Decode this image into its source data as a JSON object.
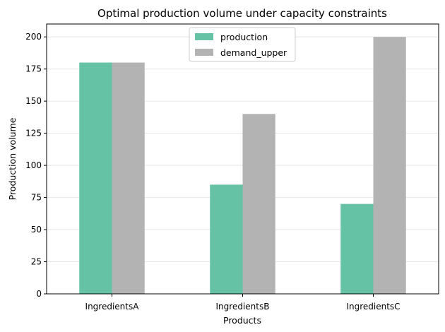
{
  "chart_data": {
    "type": "bar",
    "title": "Optimal production volume under capacity constraints",
    "xlabel": "Products",
    "ylabel": "Production volume",
    "categories": [
      "IngredientsA",
      "IngredientsB",
      "IngredientsC"
    ],
    "series": [
      {
        "name": "production",
        "values": [
          180,
          85,
          70
        ],
        "color": "#66c2a5"
      },
      {
        "name": "demand_upper",
        "values": [
          180,
          140,
          200
        ],
        "color": "#b3b3b3"
      }
    ],
    "ylim": [
      0,
      210
    ],
    "yticks": [
      0,
      25,
      50,
      75,
      100,
      125,
      150,
      175,
      200
    ],
    "grid": "horizontal",
    "legend_position": "top-center"
  }
}
